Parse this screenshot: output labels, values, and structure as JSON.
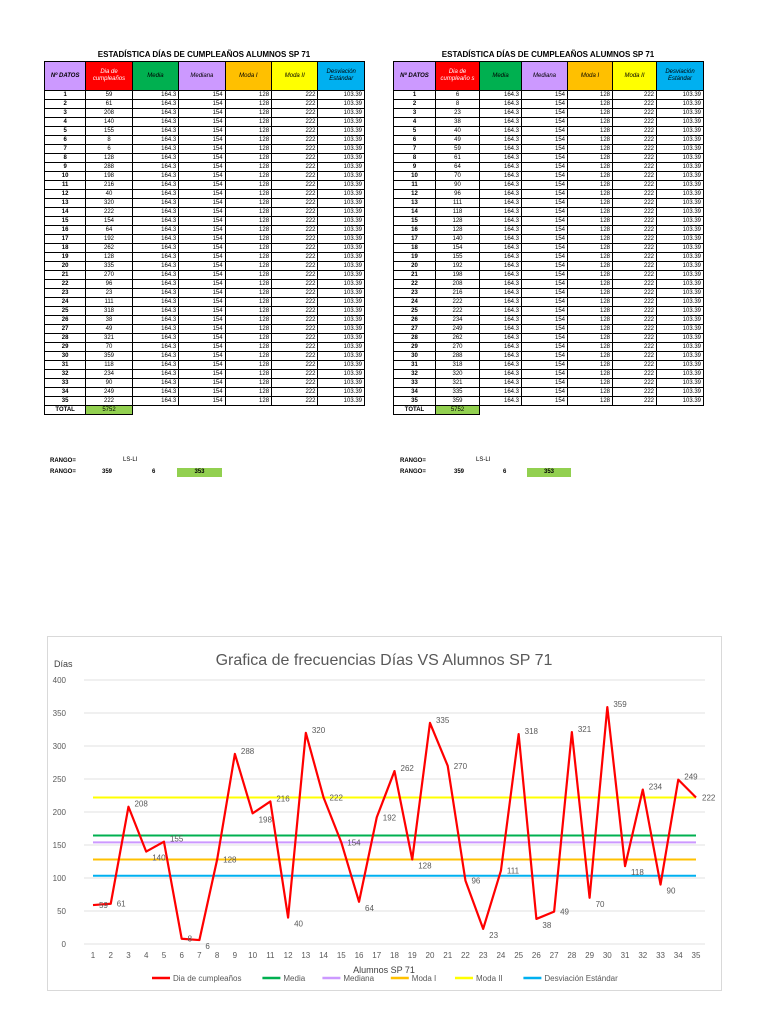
{
  "table_left": {
    "title": "ESTADÍSTICA DÍAS DE CUMPLEAÑOS ALUMNOS SP 71",
    "headers": {
      "datos": "Nº DATOS",
      "dia": "Dia de cumpleaños",
      "media": "Media",
      "mediana": "Mediana",
      "moda1": "Moda I",
      "moda2": "Moda II",
      "desv": "Desviación Estándar"
    },
    "values": [
      59,
      61,
      208,
      140,
      155,
      8,
      6,
      128,
      288,
      198,
      216,
      40,
      320,
      222,
      154,
      64,
      192,
      262,
      128,
      335,
      270,
      96,
      23,
      111,
      318,
      38,
      49,
      321,
      70,
      359,
      118,
      234,
      90,
      249,
      222
    ],
    "total_label": "TOTAL",
    "total": "5752",
    "rango_label_1": "RANGO=",
    "ls_li": "LS-LI",
    "rango_label_2": "RANGO=",
    "ls": "359",
    "li": "6",
    "rango": "353"
  },
  "table_right": {
    "title": "ESTADÍSTICA DÍAS DE CUMPLEAÑOS ALUMNOS SP 71",
    "headers": {
      "datos": "Nº DATOS",
      "dia": "Dia de cumpleaño s",
      "media": "Media",
      "mediana": "Mediana",
      "moda1": "Moda I",
      "moda2": "Moda II",
      "desv": "Desviación Estándar"
    },
    "values": [
      6,
      8,
      23,
      38,
      40,
      49,
      59,
      61,
      64,
      70,
      90,
      96,
      111,
      118,
      128,
      128,
      140,
      154,
      155,
      192,
      198,
      208,
      216,
      222,
      222,
      234,
      249,
      262,
      270,
      288,
      318,
      320,
      321,
      335,
      359
    ],
    "total_label": "TOTAL",
    "total": "5752",
    "rango_label_1": "RANGO=",
    "ls_li": "LS-LI",
    "rango_label_2": "RANGO=",
    "ls": "359",
    "li": "6",
    "rango": "353"
  },
  "constants": {
    "media": "164.3",
    "mediana": "154",
    "moda1": "128",
    "moda2": "222",
    "desv": "103.39"
  },
  "colors": {
    "dia": "#ff0000",
    "media": "#00b050",
    "mediana": "#cc99ff",
    "moda1": "#ffc000",
    "moda2": "#ffff00",
    "desv": "#00b0f0"
  },
  "chart_data": {
    "type": "line",
    "title": "Grafica de frecuencias Días VS Alumnos SP 71",
    "ylabel": "Días",
    "xlabel": "Alumnos SP 71",
    "ylim": [
      0,
      400
    ],
    "yticks": [
      0,
      50,
      100,
      150,
      200,
      250,
      300,
      350,
      400
    ],
    "x": [
      1,
      2,
      3,
      4,
      5,
      6,
      7,
      8,
      9,
      10,
      11,
      12,
      13,
      14,
      15,
      16,
      17,
      18,
      19,
      20,
      21,
      22,
      23,
      24,
      25,
      26,
      27,
      28,
      29,
      30,
      31,
      32,
      33,
      34,
      35
    ],
    "series": [
      {
        "name": "Dia de cumpleaños",
        "values": [
          59,
          61,
          208,
          140,
          155,
          8,
          6,
          128,
          288,
          198,
          216,
          40,
          320,
          222,
          154,
          64,
          192,
          262,
          128,
          335,
          270,
          96,
          23,
          111,
          318,
          38,
          49,
          321,
          70,
          359,
          118,
          234,
          90,
          249,
          222
        ]
      },
      {
        "name": "Media",
        "values": [
          164.3,
          164.3,
          164.3,
          164.3,
          164.3,
          164.3,
          164.3,
          164.3,
          164.3,
          164.3,
          164.3,
          164.3,
          164.3,
          164.3,
          164.3,
          164.3,
          164.3,
          164.3,
          164.3,
          164.3,
          164.3,
          164.3,
          164.3,
          164.3,
          164.3,
          164.3,
          164.3,
          164.3,
          164.3,
          164.3,
          164.3,
          164.3,
          164.3,
          164.3,
          164.3
        ]
      },
      {
        "name": "Mediana",
        "values": [
          154,
          154,
          154,
          154,
          154,
          154,
          154,
          154,
          154,
          154,
          154,
          154,
          154,
          154,
          154,
          154,
          154,
          154,
          154,
          154,
          154,
          154,
          154,
          154,
          154,
          154,
          154,
          154,
          154,
          154,
          154,
          154,
          154,
          154,
          154
        ]
      },
      {
        "name": "Moda I",
        "values": [
          128,
          128,
          128,
          128,
          128,
          128,
          128,
          128,
          128,
          128,
          128,
          128,
          128,
          128,
          128,
          128,
          128,
          128,
          128,
          128,
          128,
          128,
          128,
          128,
          128,
          128,
          128,
          128,
          128,
          128,
          128,
          128,
          128,
          128,
          128
        ]
      },
      {
        "name": "Moda II",
        "values": [
          222,
          222,
          222,
          222,
          222,
          222,
          222,
          222,
          222,
          222,
          222,
          222,
          222,
          222,
          222,
          222,
          222,
          222,
          222,
          222,
          222,
          222,
          222,
          222,
          222,
          222,
          222,
          222,
          222,
          222,
          222,
          222,
          222,
          222,
          222
        ]
      },
      {
        "name": "Desviación Estándar",
        "values": [
          103.39,
          103.39,
          103.39,
          103.39,
          103.39,
          103.39,
          103.39,
          103.39,
          103.39,
          103.39,
          103.39,
          103.39,
          103.39,
          103.39,
          103.39,
          103.39,
          103.39,
          103.39,
          103.39,
          103.39,
          103.39,
          103.39,
          103.39,
          103.39,
          103.39,
          103.39,
          103.39,
          103.39,
          103.39,
          103.39,
          103.39,
          103.39,
          103.39,
          103.39,
          103.39
        ]
      }
    ],
    "legend": [
      "Dia de cumpleaños",
      "Media",
      "Mediana",
      "Moda I",
      "Moda II",
      "Desviación Estándar"
    ],
    "legend_position": "bottom"
  }
}
